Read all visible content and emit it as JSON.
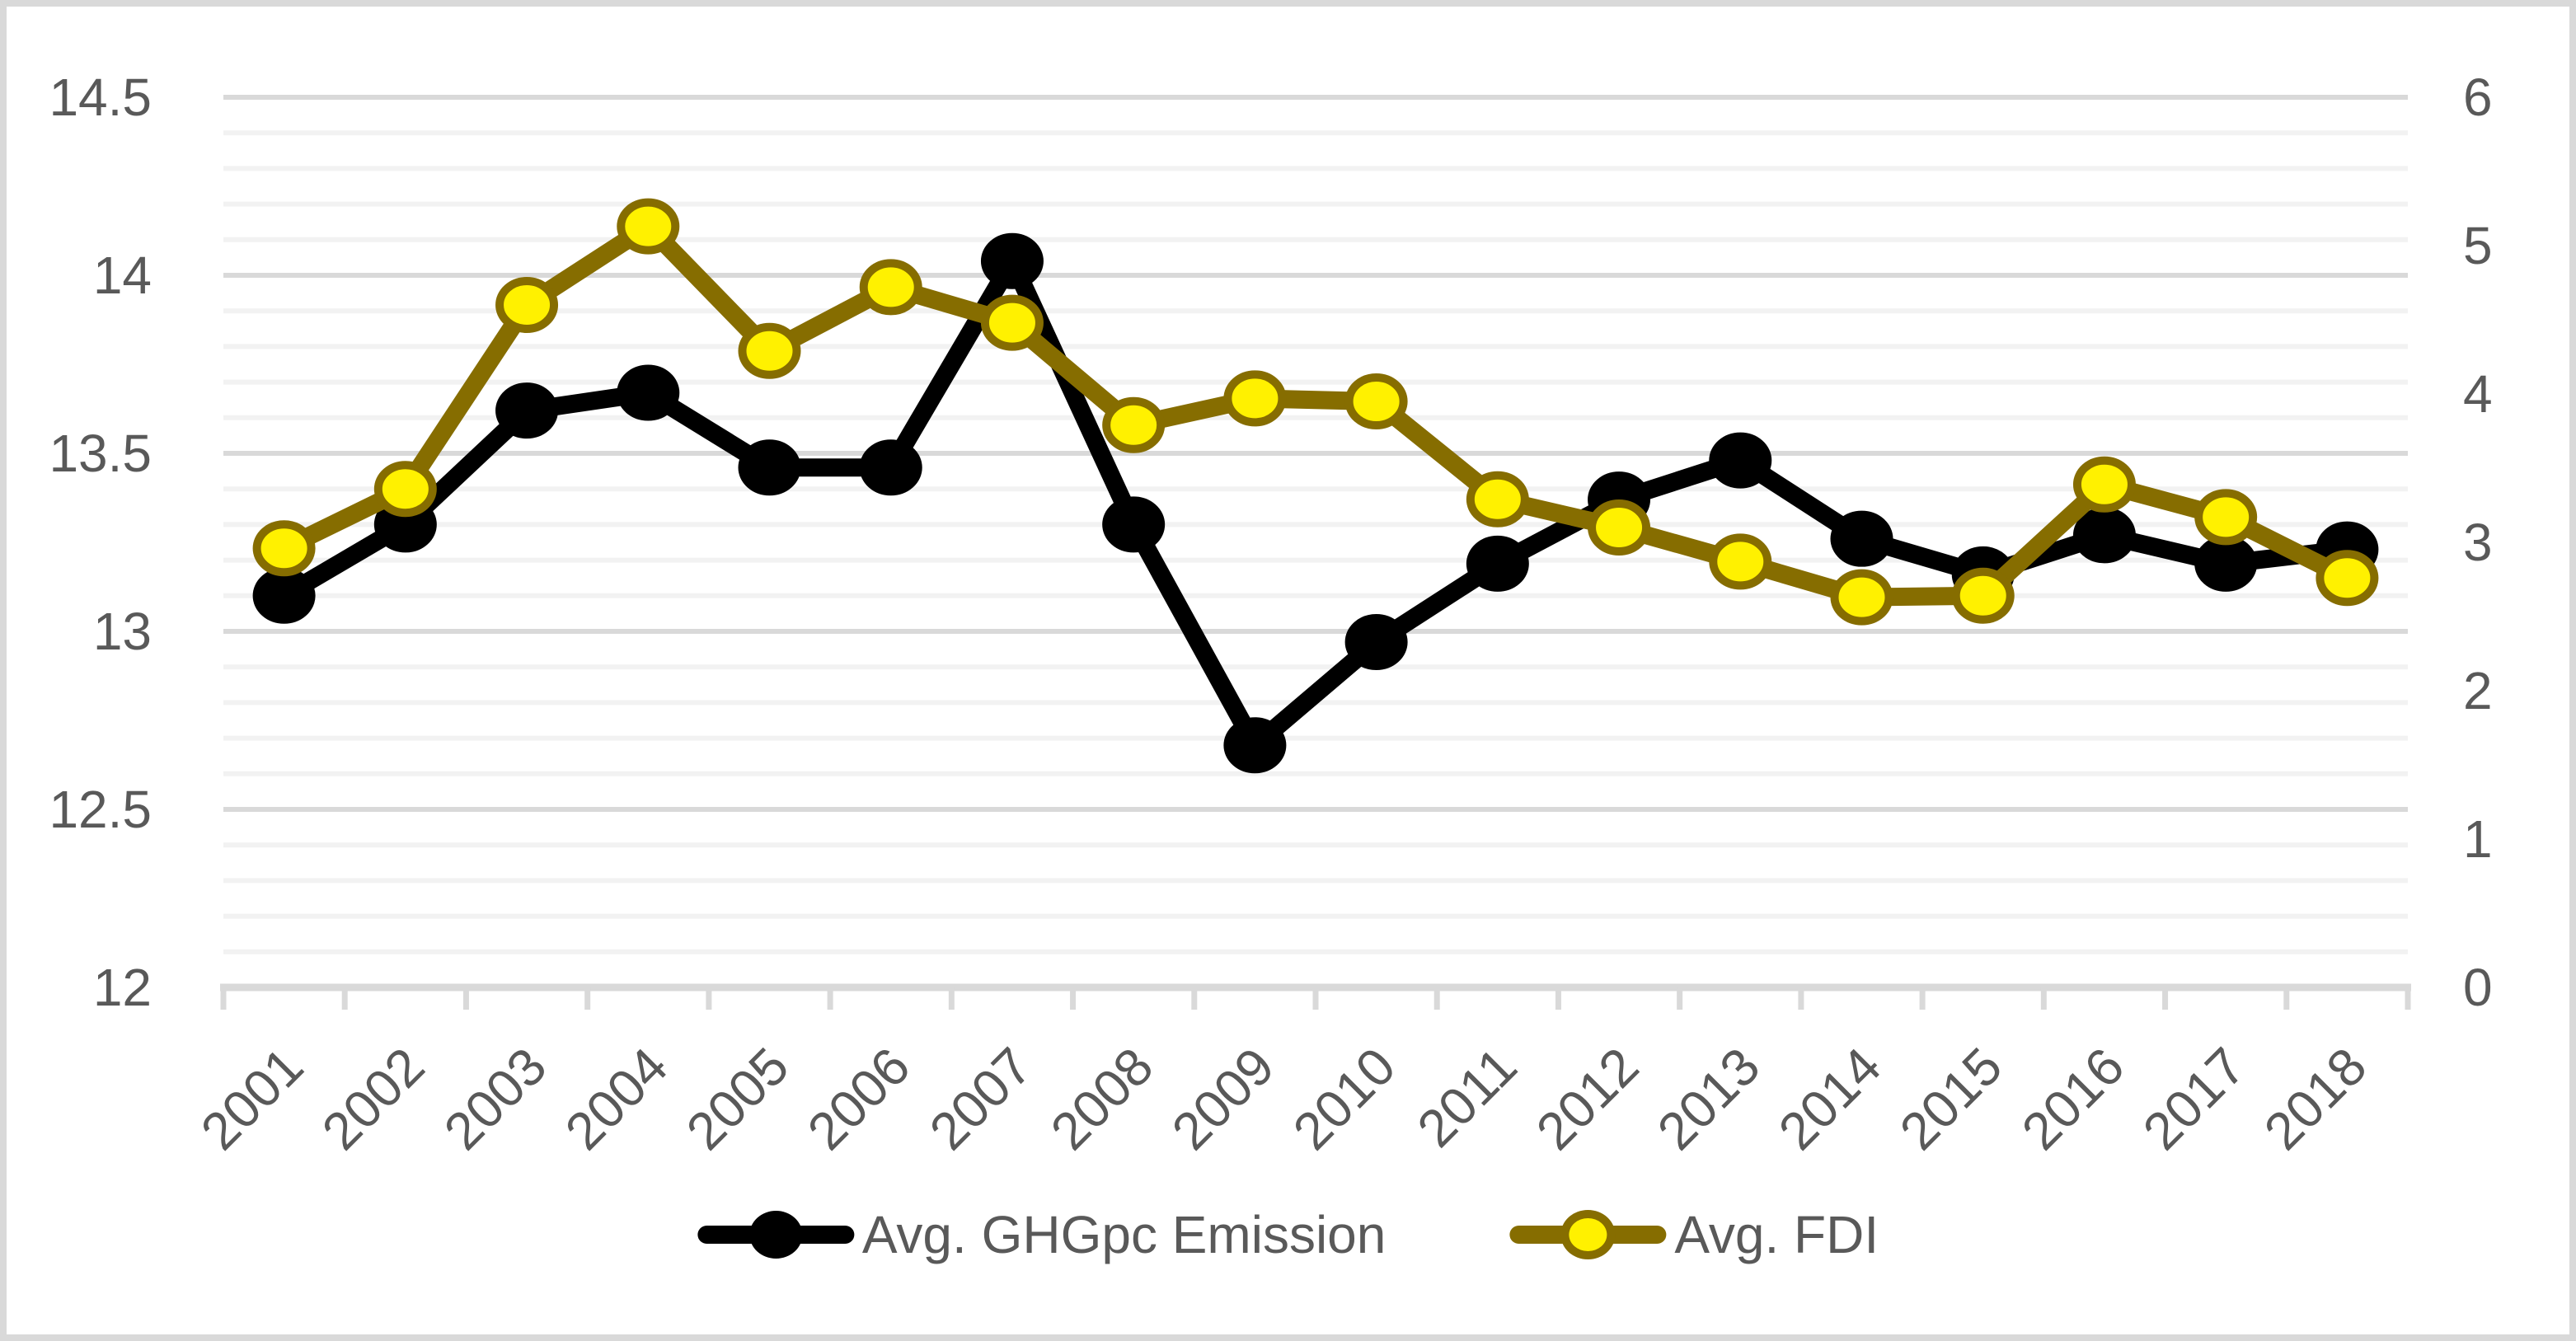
{
  "chart_data": {
    "type": "line",
    "title": "",
    "categories": [
      "2001",
      "2002",
      "2003",
      "2004",
      "2005",
      "2006",
      "2007",
      "2008",
      "2009",
      "2010",
      "2011",
      "2012",
      "2013",
      "2014",
      "2015",
      "2016",
      "2017",
      "2018"
    ],
    "series": [
      {
        "name": "Avg. GHGpc Emission",
        "axis": "left",
        "line_color": "#000000",
        "marker_fill": "#000000",
        "marker_border": "#000000",
        "values": [
          13.1,
          13.3,
          13.62,
          13.67,
          13.46,
          13.46,
          14.04,
          13.3,
          12.68,
          12.97,
          13.19,
          13.37,
          13.48,
          13.26,
          13.16,
          13.27,
          13.19,
          13.23
        ]
      },
      {
        "name": "Avg. FDI",
        "axis": "right",
        "line_color": "#866D00",
        "marker_fill": "#FFF100",
        "marker_border": "#866D00",
        "values": [
          2.96,
          3.36,
          4.6,
          5.13,
          4.29,
          4.72,
          4.48,
          3.79,
          3.97,
          3.95,
          3.29,
          3.1,
          2.87,
          2.63,
          2.64,
          3.39,
          3.17,
          2.76
        ]
      }
    ],
    "left_axis": {
      "min": 12,
      "max": 14.5,
      "tick_step": 0.5,
      "minor_step": 0.1,
      "tick_labels": [
        "14.5",
        "14",
        "13.5",
        "13",
        "12.5",
        "12"
      ]
    },
    "right_axis": {
      "min": 0,
      "max": 6,
      "tick_step": 1,
      "tick_labels": [
        "6",
        "5",
        "4",
        "3",
        "2",
        "1",
        "0"
      ]
    },
    "legend_position": "bottom",
    "grid": {
      "major_color": "#D9D9D9",
      "minor_color": "#F2F2F2",
      "axis_color": "#D9D9D9"
    },
    "text_color": "#595959",
    "border_color": "#D9D9D9"
  }
}
